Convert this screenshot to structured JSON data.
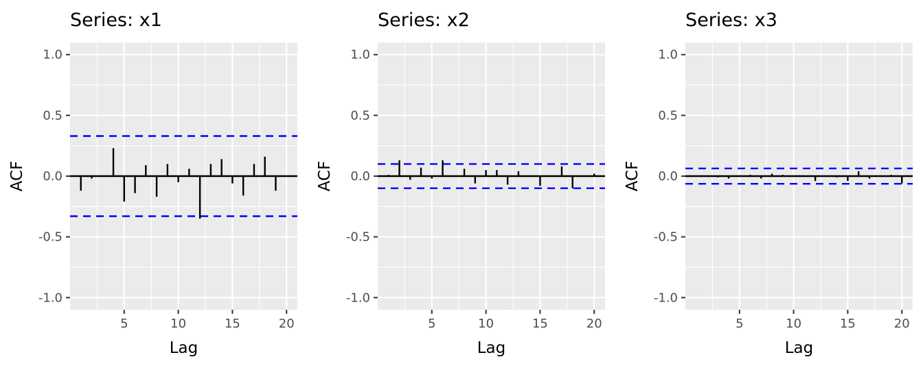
{
  "colors": {
    "panel_background": "#ebebeb",
    "grid": "#ffffff",
    "bars": "#000000",
    "confidence_band": "#0000ff"
  },
  "chart_data": [
    {
      "type": "bar",
      "title": "Series: x1",
      "xlabel": "Lag",
      "ylabel": "ACF",
      "xlim": [
        0,
        21
      ],
      "ylim": [
        -1.1,
        1.1
      ],
      "x_ticks": [
        5,
        10,
        15,
        20
      ],
      "y_ticks": [
        1.0,
        0.5,
        0.0,
        -0.5,
        -1.0
      ],
      "y_tick_labels": [
        "1.0",
        "0.5",
        "0.0",
        "-0.5",
        "-1.0"
      ],
      "grid": true,
      "ci": 0.33,
      "lags": [
        1,
        2,
        3,
        4,
        5,
        6,
        7,
        8,
        9,
        10,
        11,
        12,
        13,
        14,
        15,
        16,
        17,
        18,
        19
      ],
      "acf": [
        -0.12,
        -0.02,
        0.0,
        0.23,
        -0.21,
        -0.14,
        0.09,
        -0.17,
        0.1,
        -0.05,
        0.06,
        -0.35,
        0.1,
        0.14,
        -0.06,
        -0.16,
        0.1,
        0.16,
        -0.12
      ]
    },
    {
      "type": "bar",
      "title": "Series: x2",
      "xlabel": "Lag",
      "ylabel": "ACF",
      "xlim": [
        0,
        21
      ],
      "ylim": [
        -1.1,
        1.1
      ],
      "x_ticks": [
        5,
        10,
        15,
        20
      ],
      "y_ticks": [
        1.0,
        0.5,
        0.0,
        -0.5,
        -1.0
      ],
      "y_tick_labels": [
        "1.0",
        "0.5",
        "0.0",
        "-0.5",
        "-1.0"
      ],
      "grid": true,
      "ci": 0.1,
      "lags": [
        1,
        2,
        3,
        4,
        5,
        6,
        7,
        8,
        9,
        10,
        11,
        12,
        13,
        14,
        15,
        16,
        17,
        18,
        19,
        20
      ],
      "acf": [
        0.01,
        0.13,
        -0.03,
        0.07,
        -0.02,
        0.13,
        0.0,
        0.06,
        -0.06,
        0.05,
        0.05,
        -0.07,
        0.04,
        0.0,
        -0.08,
        0.0,
        0.08,
        -0.1,
        0.0,
        0.02
      ]
    },
    {
      "type": "bar",
      "title": "Series: x3",
      "xlabel": "Lag",
      "ylabel": "ACF",
      "xlim": [
        0,
        21
      ],
      "ylim": [
        -1.1,
        1.1
      ],
      "x_ticks": [
        5,
        10,
        15,
        20
      ],
      "y_ticks": [
        1.0,
        0.5,
        0.0,
        -0.5,
        -1.0
      ],
      "y_tick_labels": [
        "1.0",
        "0.5",
        "0.0",
        "-0.5",
        "-1.0"
      ],
      "grid": true,
      "ci": 0.063,
      "lags": [
        1,
        2,
        3,
        4,
        5,
        6,
        7,
        8,
        9,
        10,
        11,
        12,
        13,
        14,
        15,
        16,
        17,
        18,
        19,
        20
      ],
      "acf": [
        0.0,
        0.0,
        -0.01,
        -0.02,
        0.0,
        0.01,
        -0.02,
        0.02,
        0.01,
        0.0,
        0.0,
        -0.04,
        0.0,
        -0.01,
        -0.04,
        0.04,
        -0.02,
        0.0,
        0.01,
        -0.06
      ]
    }
  ]
}
